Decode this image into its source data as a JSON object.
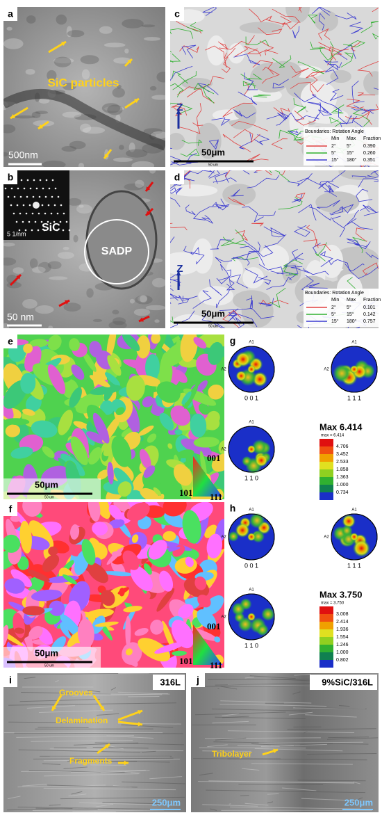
{
  "panels": {
    "a": {
      "label": "a",
      "annotation": "SiC particles",
      "scale_bar": "500nm"
    },
    "b": {
      "label": "b",
      "inset_scale": "5 1/nm",
      "inset_label": "SiC",
      "circle_label": "SADP",
      "scale_bar": "50 nm"
    },
    "c": {
      "label": "c",
      "axis": "Z",
      "scale_bar": "50μm",
      "scale_bar_small": "50 um",
      "legend": {
        "title": "Boundaries: Rotation Angle",
        "columns": [
          "Min",
          "Max",
          "Fraction"
        ],
        "rows": [
          [
            "2°",
            "5°",
            "0.390"
          ],
          [
            "5°",
            "15°",
            "0.260"
          ],
          [
            "15°",
            "180°",
            "0.351"
          ]
        ]
      }
    },
    "d": {
      "label": "d",
      "axis": "Z",
      "scale_bar": "50μm",
      "scale_bar_small": "50 um",
      "legend": {
        "title": "Boundaries: Rotation Angle",
        "columns": [
          "Min",
          "Max",
          "Fraction"
        ],
        "rows": [
          [
            "2°",
            "5°",
            "0.101"
          ],
          [
            "5°",
            "15°",
            "0.142"
          ],
          [
            "15°",
            "180°",
            "0.757"
          ]
        ]
      }
    },
    "e": {
      "label": "e",
      "scale_bar": "50μm",
      "scale_bar_small": "50 um",
      "ipf": [
        "001",
        "101",
        "111"
      ]
    },
    "f": {
      "label": "f",
      "scale_bar": "50μm",
      "scale_bar_small": "50 um",
      "ipf": [
        "001",
        "101",
        "111"
      ]
    },
    "g": {
      "label": "g",
      "axis_labels": [
        "A1",
        "A2"
      ],
      "poles": [
        "0 0 1",
        "1 1 1",
        "1 1 0"
      ],
      "max_title": "Max 6.414",
      "max_small": "max = 6.414",
      "scale": [
        "4.706",
        "3.452",
        "2.533",
        "1.858",
        "1.363",
        "1.000",
        "0.734"
      ]
    },
    "h": {
      "label": "h",
      "axis_labels": [
        "A1",
        "A2"
      ],
      "poles": [
        "0 0 1",
        "1 1 1",
        "1 1 0"
      ],
      "max_title": "Max 3.750",
      "max_small": "max = 3.750",
      "scale": [
        "3.008",
        "2.414",
        "1.936",
        "1.554",
        "1.246",
        "1.000",
        "0.802"
      ]
    },
    "i": {
      "label": "i",
      "sample": "316L",
      "annotations": [
        "Grooves",
        "Delamination",
        "Fragments"
      ],
      "scale_bar": "250μm"
    },
    "j": {
      "label": "j",
      "sample": "9%SiC/316L",
      "annotations": [
        "Tribolayer"
      ],
      "scale_bar": "250μm"
    }
  }
}
